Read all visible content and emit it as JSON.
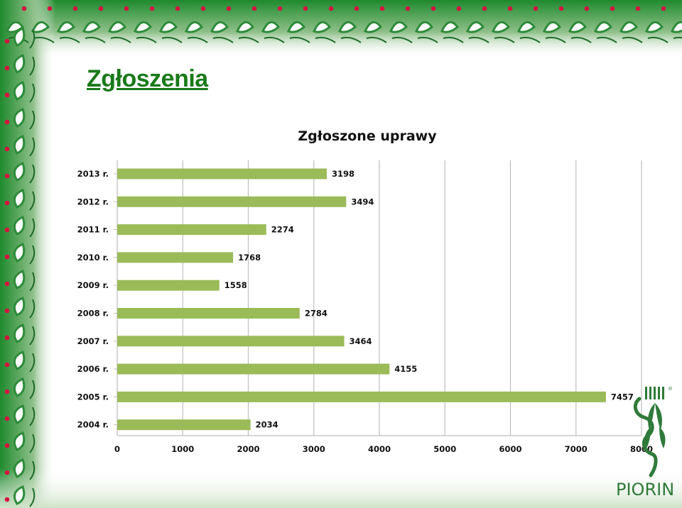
{
  "slide": {
    "title": "Zgłoszenia"
  },
  "logo": {
    "text": "PIORIN",
    "registered": "®"
  },
  "colors": {
    "title": "#1a7a1a",
    "bar": "#9bbb59",
    "vine_leaf": "#2e8b3a",
    "vine_dot": "#d2153f",
    "logo": "#2f7a3a"
  },
  "chart_data": {
    "type": "bar",
    "orientation": "horizontal",
    "title": "Zgłoszone uprawy",
    "categories": [
      "2013 r.",
      "2012 r.",
      "2011 r.",
      "2010 r.",
      "2009 r.",
      "2008 r.",
      "2007 r.",
      "2006 r.",
      "2005 r.",
      "2004 r."
    ],
    "values": [
      3198,
      3494,
      2274,
      1768,
      1558,
      2784,
      3464,
      4155,
      7457,
      2034
    ],
    "xlim": [
      0,
      8000
    ],
    "xticks": [
      0,
      1000,
      2000,
      3000,
      4000,
      5000,
      6000,
      7000,
      8000
    ],
    "grid": "vertical",
    "data_labels": true,
    "legend": "none"
  }
}
